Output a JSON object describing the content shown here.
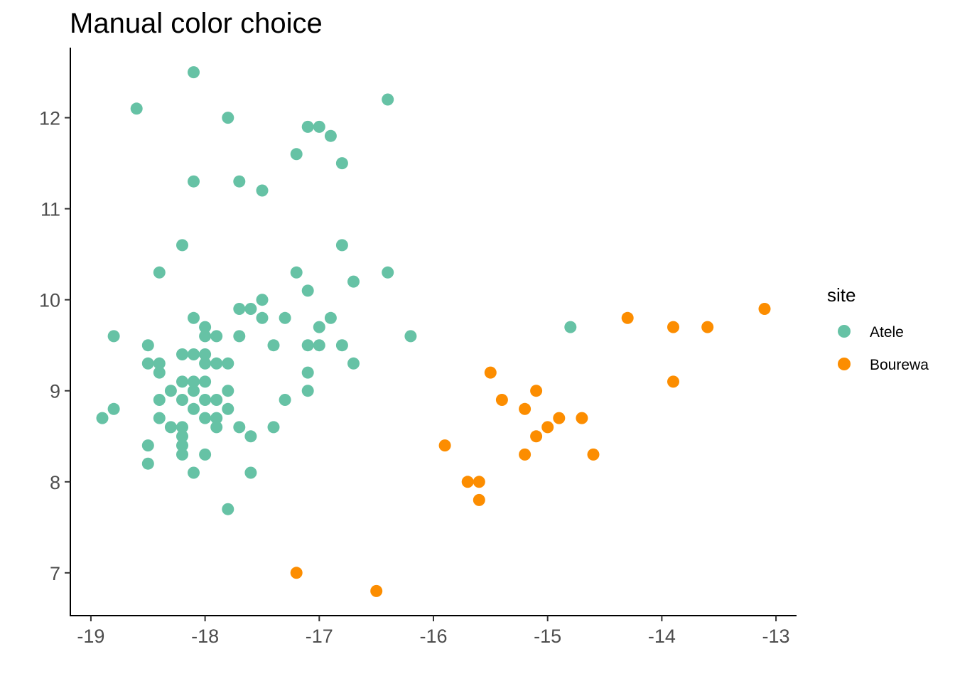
{
  "chart_data": {
    "type": "scatter",
    "title": "Manual color choice",
    "xlabel": "",
    "ylabel": "",
    "xlim": [
      -19.18,
      -12.82
    ],
    "ylim": [
      6.53,
      12.77
    ],
    "x_ticks": [
      -19,
      -18,
      -17,
      -16,
      -15,
      -14,
      -13
    ],
    "x_tick_labels": [
      "-19",
      "-18",
      "-17",
      "-16",
      "-15",
      "-14",
      "-13"
    ],
    "y_ticks": [
      7,
      8,
      9,
      10,
      11,
      12
    ],
    "y_tick_labels": [
      "7",
      "8",
      "9",
      "10",
      "11",
      "12"
    ],
    "grid": false,
    "legend": {
      "title": "site",
      "position": "right"
    },
    "series": [
      {
        "name": "Atele",
        "color": "#66C2A5",
        "points": [
          [
            -18.1,
            12.5
          ],
          [
            -18.6,
            12.1
          ],
          [
            -17.8,
            12.0
          ],
          [
            -16.4,
            12.2
          ],
          [
            -17.1,
            11.9
          ],
          [
            -17.0,
            11.9
          ],
          [
            -16.9,
            11.8
          ],
          [
            -17.2,
            11.6
          ],
          [
            -16.8,
            11.5
          ],
          [
            -18.1,
            11.3
          ],
          [
            -17.7,
            11.3
          ],
          [
            -17.5,
            11.2
          ],
          [
            -18.2,
            10.6
          ],
          [
            -16.8,
            10.6
          ],
          [
            -18.4,
            10.3
          ],
          [
            -17.2,
            10.3
          ],
          [
            -16.4,
            10.3
          ],
          [
            -16.7,
            10.2
          ],
          [
            -17.1,
            10.1
          ],
          [
            -17.5,
            10.0
          ],
          [
            -17.7,
            9.9
          ],
          [
            -17.6,
            9.9
          ],
          [
            -18.1,
            9.8
          ],
          [
            -17.5,
            9.8
          ],
          [
            -17.3,
            9.8
          ],
          [
            -16.9,
            9.8
          ],
          [
            -18.0,
            9.7
          ],
          [
            -17.0,
            9.7
          ],
          [
            -18.8,
            9.6
          ],
          [
            -18.0,
            9.6
          ],
          [
            -17.9,
            9.6
          ],
          [
            -17.7,
            9.6
          ],
          [
            -16.2,
            9.6
          ],
          [
            -18.5,
            9.5
          ],
          [
            -17.4,
            9.5
          ],
          [
            -17.1,
            9.5
          ],
          [
            -17.0,
            9.5
          ],
          [
            -16.8,
            9.5
          ],
          [
            -18.2,
            9.4
          ],
          [
            -18.1,
            9.4
          ],
          [
            -18.0,
            9.4
          ],
          [
            -18.5,
            9.3
          ],
          [
            -18.4,
            9.3
          ],
          [
            -18.0,
            9.3
          ],
          [
            -17.9,
            9.3
          ],
          [
            -17.8,
            9.3
          ],
          [
            -16.7,
            9.3
          ],
          [
            -18.4,
            9.2
          ],
          [
            -17.1,
            9.2
          ],
          [
            -18.2,
            9.1
          ],
          [
            -18.1,
            9.1
          ],
          [
            -18.0,
            9.1
          ],
          [
            -18.3,
            9.0
          ],
          [
            -18.1,
            9.0
          ],
          [
            -17.8,
            9.0
          ],
          [
            -17.1,
            9.0
          ],
          [
            -18.4,
            8.9
          ],
          [
            -18.2,
            8.9
          ],
          [
            -18.0,
            8.9
          ],
          [
            -17.9,
            8.9
          ],
          [
            -17.3,
            8.9
          ],
          [
            -18.8,
            8.8
          ],
          [
            -18.1,
            8.8
          ],
          [
            -17.8,
            8.8
          ],
          [
            -18.9,
            8.7
          ],
          [
            -18.4,
            8.7
          ],
          [
            -18.0,
            8.7
          ],
          [
            -17.9,
            8.7
          ],
          [
            -18.3,
            8.6
          ],
          [
            -18.2,
            8.6
          ],
          [
            -17.9,
            8.6
          ],
          [
            -17.7,
            8.6
          ],
          [
            -17.4,
            8.6
          ],
          [
            -18.2,
            8.5
          ],
          [
            -17.6,
            8.5
          ],
          [
            -18.5,
            8.4
          ],
          [
            -18.2,
            8.4
          ],
          [
            -18.2,
            8.3
          ],
          [
            -18.0,
            8.3
          ],
          [
            -18.5,
            8.2
          ],
          [
            -18.1,
            8.1
          ],
          [
            -17.6,
            8.1
          ],
          [
            -17.8,
            7.7
          ],
          [
            -14.8,
            9.7
          ]
        ]
      },
      {
        "name": "Bourewa",
        "color": "#FC8D00",
        "points": [
          [
            -14.3,
            9.8
          ],
          [
            -13.9,
            9.7
          ],
          [
            -13.6,
            9.7
          ],
          [
            -13.1,
            9.9
          ],
          [
            -13.9,
            9.1
          ],
          [
            -15.5,
            9.2
          ],
          [
            -15.1,
            9.0
          ],
          [
            -15.4,
            8.9
          ],
          [
            -15.2,
            8.8
          ],
          [
            -14.9,
            8.7
          ],
          [
            -14.7,
            8.7
          ],
          [
            -15.0,
            8.6
          ],
          [
            -15.1,
            8.5
          ],
          [
            -15.9,
            8.4
          ],
          [
            -15.2,
            8.3
          ],
          [
            -14.6,
            8.3
          ],
          [
            -15.7,
            8.0
          ],
          [
            -15.6,
            8.0
          ],
          [
            -15.6,
            7.8
          ],
          [
            -17.2,
            7.0
          ],
          [
            -16.5,
            6.8
          ]
        ]
      }
    ]
  }
}
